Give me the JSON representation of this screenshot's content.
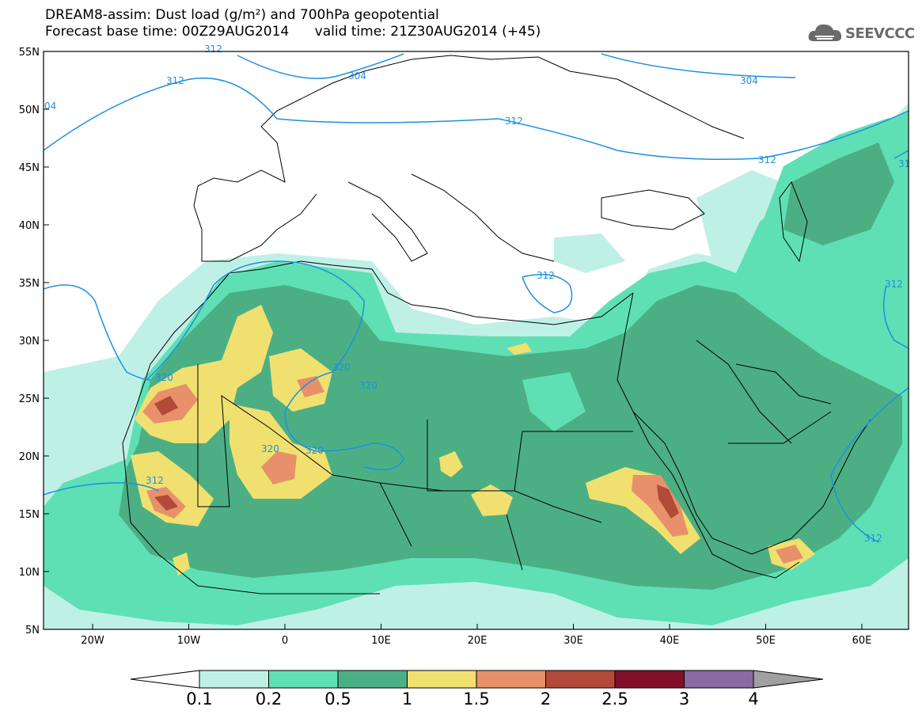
{
  "header": {
    "title_line1": "DREAM8-assim: Dust load (g/m²) and 700hPa geopotential",
    "title_line2": "Forecast base time: 00Z29AUG2014      valid time: 21Z30AUG2014 (+45)"
  },
  "logo": {
    "text": "SEEVCCC",
    "icon": "cloud-logo-icon"
  },
  "map": {
    "lat_ticks": [
      "55N",
      "50N",
      "45N",
      "40N",
      "35N",
      "30N",
      "25N",
      "20N",
      "15N",
      "10N",
      "5N"
    ],
    "lon_ticks": [
      "20W",
      "10W",
      "0",
      "10E",
      "20E",
      "30E",
      "40E",
      "50E",
      "60E"
    ],
    "contour_labels": [
      "312",
      "304",
      "04",
      "312",
      "312",
      "304",
      "312",
      "312",
      "312",
      "31",
      "312",
      "320",
      "320",
      "320",
      "320",
      "320",
      "312"
    ]
  },
  "colorbar": {
    "colors": [
      "#bff0e6",
      "#5fe0b4",
      "#4caf84",
      "#f0e070",
      "#e8906a",
      "#b24a3a",
      "#820f28",
      "#8a6aa0",
      "#a0a0a0"
    ],
    "labels": [
      "0.1",
      "0.2",
      "0.5",
      "1",
      "1.5",
      "2",
      "2.5",
      "3",
      "4"
    ]
  },
  "palette": {
    "lightest": "#bff0e6",
    "light": "#5fe0b4",
    "medium": "#4caf84",
    "yellow": "#f0e070",
    "orange": "#e8906a",
    "red": "#b24a3a",
    "contour": "#1e90e0"
  }
}
